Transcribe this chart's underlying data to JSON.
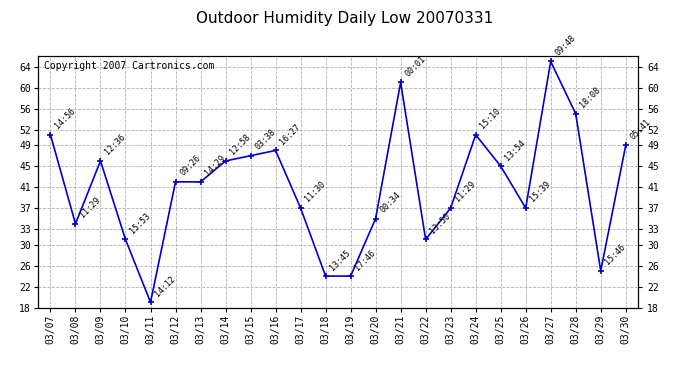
{
  "title": "Outdoor Humidity Daily Low 20070331",
  "copyright": "Copyright 2007 Cartronics.com",
  "dates": [
    "03/07",
    "03/08",
    "03/09",
    "03/10",
    "03/11",
    "03/12",
    "03/13",
    "03/14",
    "03/15",
    "03/16",
    "03/17",
    "03/18",
    "03/19",
    "03/20",
    "03/21",
    "03/22",
    "03/23",
    "03/24",
    "03/25",
    "03/26",
    "03/27",
    "03/28",
    "03/29",
    "03/30"
  ],
  "values": [
    51,
    34,
    46,
    31,
    19,
    42,
    42,
    46,
    47,
    48,
    37,
    24,
    24,
    35,
    61,
    31,
    37,
    51,
    45,
    37,
    65,
    55,
    25,
    49
  ],
  "times": [
    "14:56",
    "11:29",
    "12:36",
    "15:53",
    "14:12",
    "09:26",
    "14:29",
    "12:58",
    "03:38",
    "16:27",
    "11:30",
    "13:45",
    "17:46",
    "00:34",
    "00:01",
    "13:50",
    "11:29",
    "15:10",
    "13:54",
    "15:39",
    "09:48",
    "18:08",
    "15:46",
    "05:41"
  ],
  "ylim": [
    18,
    66
  ],
  "yticks": [
    18,
    22,
    26,
    30,
    33,
    37,
    41,
    45,
    49,
    52,
    56,
    60,
    64
  ],
  "line_color": "#0000cc",
  "marker_color": "#0000cc",
  "bg_color": "#ffffff",
  "grid_color": "#b0b0b0",
  "title_fontsize": 11,
  "annotation_fontsize": 6,
  "tick_fontsize": 7,
  "copyright_fontsize": 7
}
